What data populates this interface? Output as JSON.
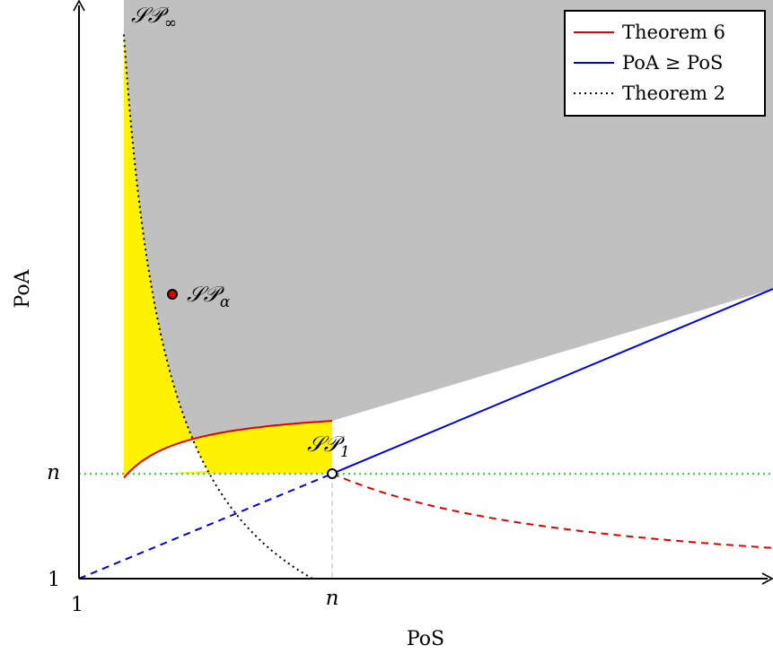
{
  "chart_data": {
    "type": "line",
    "title": "",
    "xlabel": "PoS",
    "ylabel": "PoA",
    "x_ticks": [
      "1",
      "n"
    ],
    "y_ticks": [
      "1",
      "n"
    ],
    "legend_position": "top-right",
    "legend": [
      {
        "label": "Theorem 6",
        "color": "#e00000",
        "style": "solid"
      },
      {
        "label": "PoA ≥ PoS",
        "color": "#0000e0",
        "style": "solid"
      },
      {
        "label": "Theorem 2",
        "color": "#000000",
        "style": "dotted"
      }
    ],
    "points": [
      {
        "id": "sp-inf",
        "label_main": "𝒮𝒫",
        "label_sub": "∞"
      },
      {
        "id": "sp-alpha",
        "label_main": "𝒮𝒫",
        "label_sub": "α"
      },
      {
        "id": "sp-1",
        "label_main": "𝒮𝒫",
        "label_sub": "1"
      }
    ],
    "regions": [
      {
        "name": "feasible region",
        "color": "#c0c0c0"
      },
      {
        "name": "gap between bounds",
        "color": "#fff200"
      }
    ],
    "reference_lines": [
      {
        "name": "PoA = n",
        "color": "#33dd33",
        "style": "dotted"
      },
      {
        "name": "PoS = n",
        "color": "#bbbbbb",
        "style": "dashed"
      }
    ],
    "grid": false
  }
}
